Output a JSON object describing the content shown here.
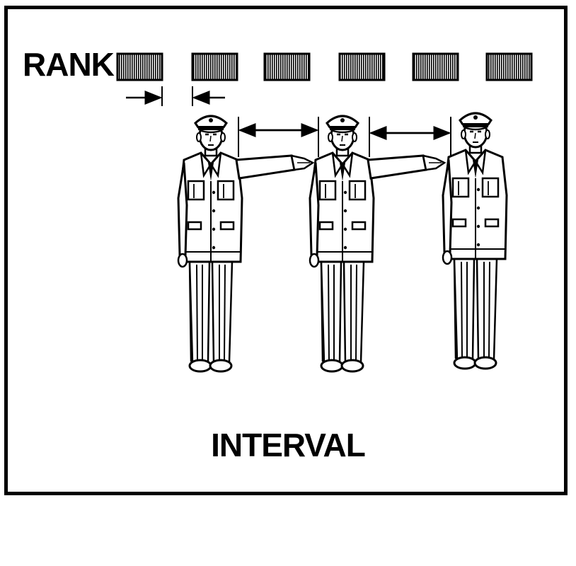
{
  "diagram": {
    "rank_label": "RANK",
    "interval_label": "INTERVAL",
    "rank_block_count": 6,
    "figure_count": 3,
    "colors": {
      "ink": "#000000",
      "paper": "#ffffff"
    }
  }
}
